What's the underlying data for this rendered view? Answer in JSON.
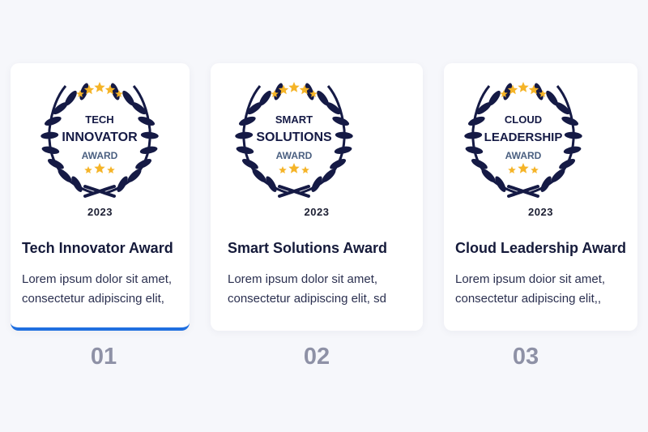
{
  "colors": {
    "accent": "#1f6fe0",
    "laurel": "#151a45",
    "star": "#f5b428",
    "award_word": "#4a5f80",
    "number": "#8e91a6"
  },
  "cards": [
    {
      "badge_line1": "TECH",
      "badge_line2": "INNOVATOR",
      "badge_line3": "AWARD",
      "year": "2023",
      "title": "Tech Innovator Award",
      "desc_line1": "Lorem ipsum dolor sit amet,",
      "desc_line2": "consectetur adipiscing elit,",
      "number": "01",
      "active": true
    },
    {
      "badge_line1": "SMART",
      "badge_line2": "SOLUTIONS",
      "badge_line3": "AWARD",
      "year": "2023",
      "title": "Smart Solutions Award",
      "desc_line1": "Lorem ipsum dolor sit amet,",
      "desc_line2": "consectetur adipiscing elit, sd",
      "number": "02",
      "active": false
    },
    {
      "badge_line1": "CLOUD",
      "badge_line2": "LEADERSHIP",
      "badge_line3": "AWARD",
      "year": "2023",
      "title": "Cloud Leadership Award",
      "desc_line1": "Lorem ipsum doior sit amet,",
      "desc_line2": "consectetur adipiscing elit,,",
      "number": "03",
      "active": false
    }
  ]
}
